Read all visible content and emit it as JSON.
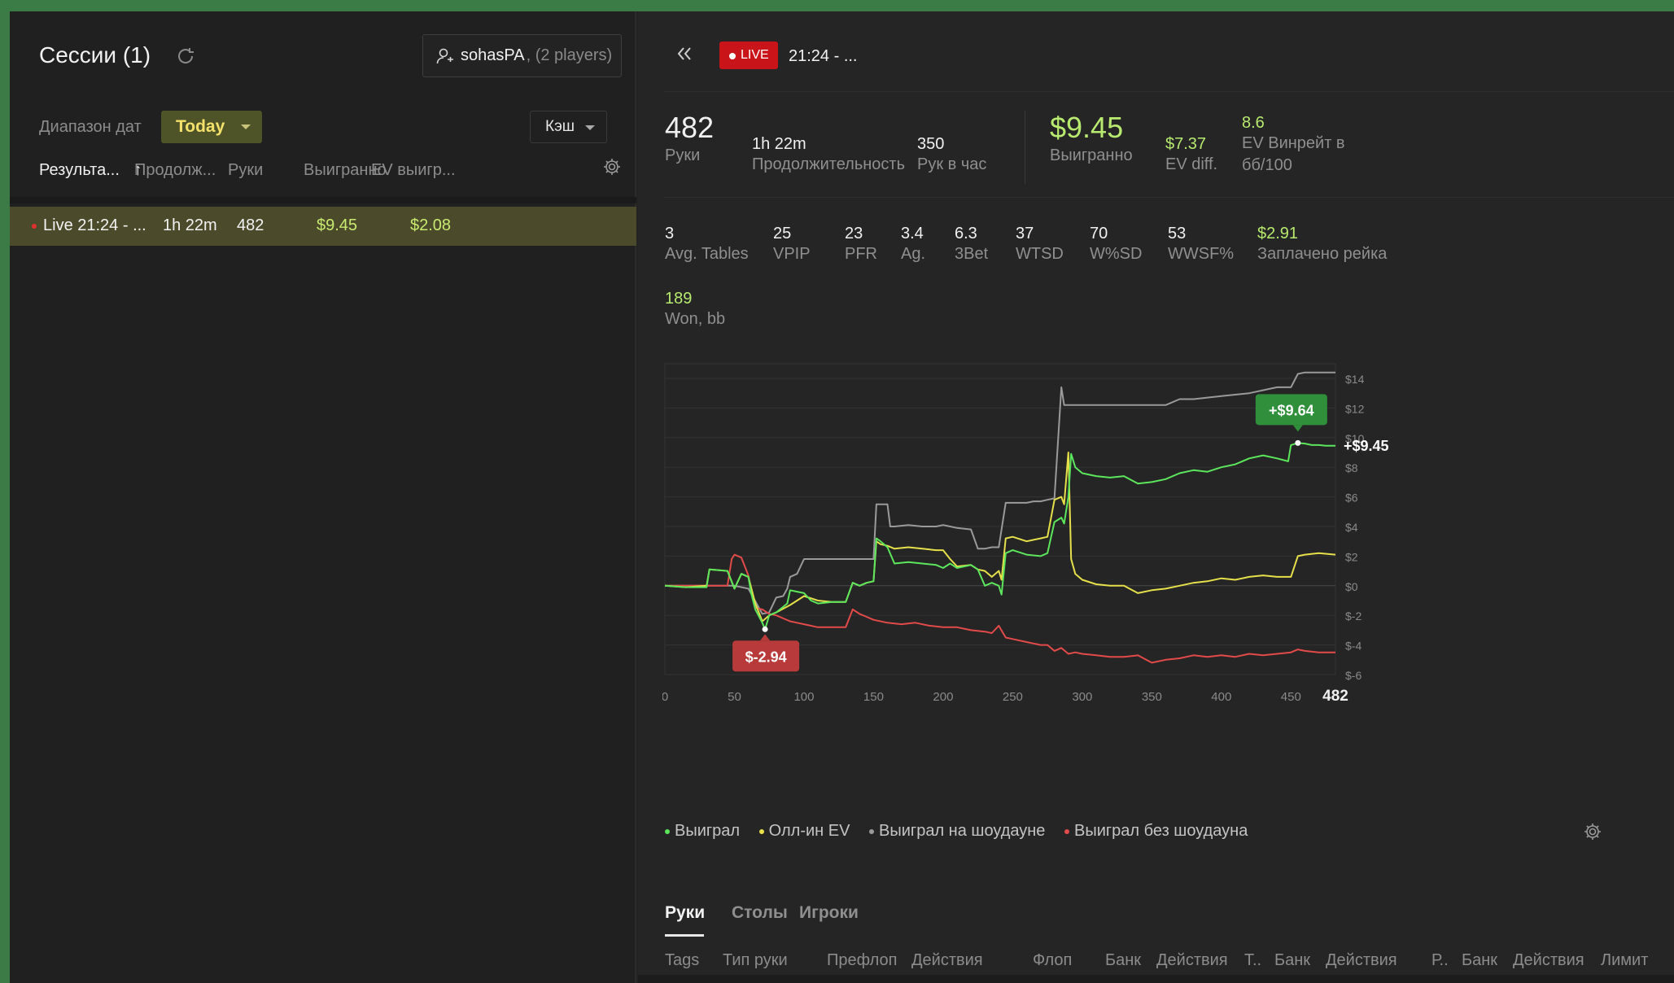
{
  "sessions": {
    "title": "Сессии (1)",
    "player": {
      "name": "sohasPA",
      "count": ", (2 players)"
    },
    "date_range_label": "Диапазон дат",
    "date_range_value": "Today",
    "game_type": "Кэш",
    "columns": [
      "Результа...",
      "Продолж...",
      "Руки",
      "Выигранно",
      "EV выигр..."
    ],
    "sort_arrow": "↑",
    "rows": [
      {
        "name": "Live 21:24 - ...",
        "duration": "1h 22m",
        "hands": "482",
        "won": "$9.45",
        "ev_won": "$2.08"
      }
    ]
  },
  "detail": {
    "live_badge": "LIVE",
    "title": "21:24 - ...",
    "summary": {
      "hands": {
        "value": "482",
        "label": "Руки"
      },
      "duration": {
        "value": "1h 22m",
        "label": "Продолжительность"
      },
      "hands_per_hour": {
        "value": "350",
        "label": "Рук в час"
      },
      "won": {
        "value": "$9.45",
        "label": "Выигранно"
      },
      "ev_diff": {
        "value": "$7.37",
        "label": "EV diff."
      },
      "ev_winrate": {
        "value": "8.6",
        "label": "EV Винрейт в бб/100"
      }
    },
    "stats": [
      {
        "value": "3",
        "label": "Avg. Tables"
      },
      {
        "value": "25",
        "label": "VPIP"
      },
      {
        "value": "23",
        "label": "PFR"
      },
      {
        "value": "3.4",
        "label": "Ag."
      },
      {
        "value": "6.3",
        "label": "3Bet"
      },
      {
        "value": "37",
        "label": "WTSD"
      },
      {
        "value": "70",
        "label": "W%SD"
      },
      {
        "value": "53",
        "label": "WWSF%"
      },
      {
        "value": "$2.91",
        "label": "Заплачено рейка"
      }
    ],
    "won_bb": {
      "value": "189",
      "label": "Won, bb"
    },
    "legend": [
      "Выиграл",
      "Олл-ин EV",
      "Выиграл на шоудауне",
      "Выиграл без шоудауна"
    ],
    "tabs": [
      "Руки",
      "Столы",
      "Игроки"
    ],
    "table_columns": [
      "Tags",
      "Тип руки",
      "Префлоп",
      "Действия",
      "Флоп",
      "Банк",
      "Действия",
      "Т..",
      "Банк",
      "Действия",
      "Р..",
      "Банк",
      "Действия",
      "Лимит"
    ]
  },
  "colors": {
    "won": "#5ce65c",
    "allin_ev": "#e6e04a",
    "showdown": "#9a9a9a",
    "no_showdown": "#e34a4a",
    "accent_yellow": "#f4e16c",
    "live_red": "#c9141a"
  },
  "chart_data": {
    "type": "line",
    "xlim": [
      0,
      482
    ],
    "ylim": [
      -6,
      14
    ],
    "x_ticks": [
      "0",
      "50",
      "100",
      "150",
      "200",
      "250",
      "300",
      "350",
      "400",
      "450"
    ],
    "x_end_label": "482",
    "y_ticks": [
      "$14",
      "$12",
      "$10",
      "$8",
      "$6",
      "$4",
      "$2",
      "$0",
      "$-2",
      "$-4",
      "$-6"
    ],
    "annotations": {
      "max_label": "+$9.64",
      "min_label": "$-2.94",
      "end_label": "+$9.45"
    },
    "series": [
      {
        "name": "Выиграл",
        "x": [
          0,
          15,
          30,
          32,
          45,
          50,
          55,
          60,
          62,
          65,
          70,
          72,
          75,
          80,
          88,
          90,
          95,
          100,
          105,
          110,
          120,
          130,
          135,
          140,
          145,
          150,
          152,
          155,
          160,
          165,
          175,
          185,
          195,
          200,
          205,
          210,
          220,
          225,
          230,
          235,
          240,
          242,
          245,
          250,
          260,
          270,
          275,
          280,
          285,
          287,
          290,
          292,
          295,
          300,
          310,
          320,
          330,
          340,
          350,
          360,
          370,
          380,
          390,
          400,
          410,
          420,
          430,
          440,
          448,
          450,
          455,
          460,
          465,
          470,
          475,
          482
        ],
        "y": [
          0,
          -0.1,
          -0.1,
          1.1,
          1.0,
          -0.2,
          0.8,
          0.6,
          -0.5,
          -1.6,
          -2.5,
          -2.94,
          -2.0,
          -1.8,
          -1.2,
          -0.3,
          -0.4,
          -0.5,
          -1.0,
          -1.2,
          -1.1,
          -1.1,
          0.2,
          0.0,
          0.2,
          0.3,
          3.2,
          3.0,
          2.6,
          1.5,
          1.6,
          1.5,
          1.4,
          1.2,
          1.5,
          1.2,
          1.4,
          1.1,
          0.0,
          0.2,
          0.0,
          -0.6,
          2.2,
          2.4,
          2.1,
          2.0,
          2.2,
          4.3,
          4.6,
          4.2,
          6.0,
          8.9,
          8.0,
          7.6,
          7.4,
          7.3,
          7.4,
          6.9,
          7.0,
          7.2,
          7.6,
          7.8,
          7.7,
          8.0,
          8.2,
          8.6,
          8.8,
          8.6,
          8.4,
          9.5,
          9.64,
          9.6,
          9.5,
          9.5,
          9.45,
          9.45
        ]
      },
      {
        "name": "Олл-ин EV",
        "x": [
          0,
          15,
          30,
          32,
          45,
          50,
          55,
          60,
          65,
          70,
          75,
          80,
          90,
          100,
          110,
          120,
          130,
          135,
          140,
          145,
          150,
          152,
          155,
          160,
          165,
          175,
          185,
          195,
          200,
          205,
          210,
          220,
          225,
          230,
          235,
          240,
          242,
          245,
          250,
          260,
          270,
          275,
          280,
          285,
          287,
          290,
          292,
          295,
          300,
          310,
          320,
          330,
          340,
          350,
          360,
          370,
          380,
          390,
          400,
          410,
          420,
          430,
          440,
          448,
          450,
          455,
          460,
          470,
          482
        ],
        "y": [
          0,
          -0.1,
          0.0,
          1.1,
          1.0,
          -0.2,
          0.8,
          0.6,
          -1.2,
          -2.4,
          -2.0,
          -1.8,
          -1.3,
          -0.7,
          -1.0,
          -1.1,
          -1.1,
          0.2,
          0.0,
          0.2,
          0.3,
          3.0,
          2.8,
          2.7,
          2.5,
          2.6,
          2.5,
          2.4,
          2.4,
          1.8,
          1.3,
          1.4,
          1.1,
          1.0,
          0.6,
          1.0,
          0.4,
          3.2,
          3.3,
          3.0,
          3.2,
          3.3,
          5.8,
          6.0,
          5.5,
          9.0,
          1.8,
          0.8,
          0.4,
          0.1,
          0.0,
          0.0,
          -0.5,
          -0.3,
          -0.2,
          0.0,
          0.2,
          0.3,
          0.5,
          0.4,
          0.6,
          0.7,
          0.6,
          0.6,
          0.6,
          2.0,
          2.1,
          2.2,
          2.1
        ]
      },
      {
        "name": "Выиграл на шоудауне",
        "x": [
          0,
          30,
          45,
          50,
          60,
          70,
          75,
          80,
          85,
          88,
          90,
          95,
          100,
          110,
          120,
          130,
          140,
          145,
          150,
          152,
          155,
          160,
          162,
          165,
          175,
          185,
          195,
          200,
          205,
          210,
          220,
          225,
          230,
          235,
          240,
          245,
          250,
          255,
          260,
          265,
          270,
          275,
          280,
          285,
          287,
          290,
          295,
          300,
          320,
          340,
          360,
          370,
          380,
          400,
          420,
          440,
          450,
          455,
          460,
          482
        ],
        "y": [
          0,
          0,
          0,
          0,
          -0.2,
          -1.9,
          -1.8,
          -0.8,
          -0.7,
          -0.2,
          0.6,
          0.8,
          1.8,
          1.8,
          1.8,
          1.8,
          1.8,
          1.8,
          1.8,
          5.5,
          5.5,
          5.5,
          4.0,
          4.0,
          4.1,
          4.0,
          4.0,
          4.1,
          4.0,
          3.9,
          3.8,
          2.5,
          2.5,
          2.6,
          2.6,
          5.6,
          5.6,
          5.6,
          5.6,
          5.7,
          5.7,
          5.8,
          5.9,
          13.4,
          12.2,
          12.2,
          12.2,
          12.2,
          12.2,
          12.2,
          12.2,
          12.6,
          12.6,
          12.8,
          13.0,
          13.4,
          13.4,
          14.3,
          14.4,
          14.4
        ]
      },
      {
        "name": "Выиграл без шоудауна",
        "x": [
          0,
          15,
          30,
          45,
          48,
          50,
          55,
          60,
          62,
          65,
          70,
          75,
          80,
          90,
          95,
          100,
          110,
          120,
          130,
          135,
          140,
          145,
          150,
          160,
          170,
          180,
          190,
          200,
          210,
          220,
          230,
          235,
          240,
          245,
          250,
          260,
          270,
          275,
          280,
          285,
          290,
          295,
          300,
          310,
          320,
          330,
          340,
          350,
          360,
          370,
          380,
          390,
          400,
          410,
          420,
          430,
          440,
          450,
          455,
          460,
          470,
          482
        ],
        "y": [
          0,
          0,
          0,
          0,
          1.8,
          2.1,
          1.9,
          0.7,
          -0.4,
          -1.5,
          -1.6,
          -1.9,
          -2.0,
          -2.4,
          -2.5,
          -2.6,
          -2.8,
          -2.8,
          -2.8,
          -1.6,
          -1.9,
          -2.1,
          -2.3,
          -2.5,
          -2.6,
          -2.5,
          -2.7,
          -2.8,
          -2.8,
          -3.0,
          -3.1,
          -3.2,
          -2.7,
          -3.5,
          -3.6,
          -3.8,
          -4.0,
          -4.0,
          -4.4,
          -4.2,
          -4.6,
          -4.5,
          -4.6,
          -4.7,
          -4.8,
          -4.8,
          -4.7,
          -5.2,
          -5.0,
          -4.9,
          -4.7,
          -4.8,
          -4.7,
          -4.8,
          -4.6,
          -4.7,
          -4.6,
          -4.5,
          -4.3,
          -4.4,
          -4.5,
          -4.5
        ]
      }
    ]
  }
}
